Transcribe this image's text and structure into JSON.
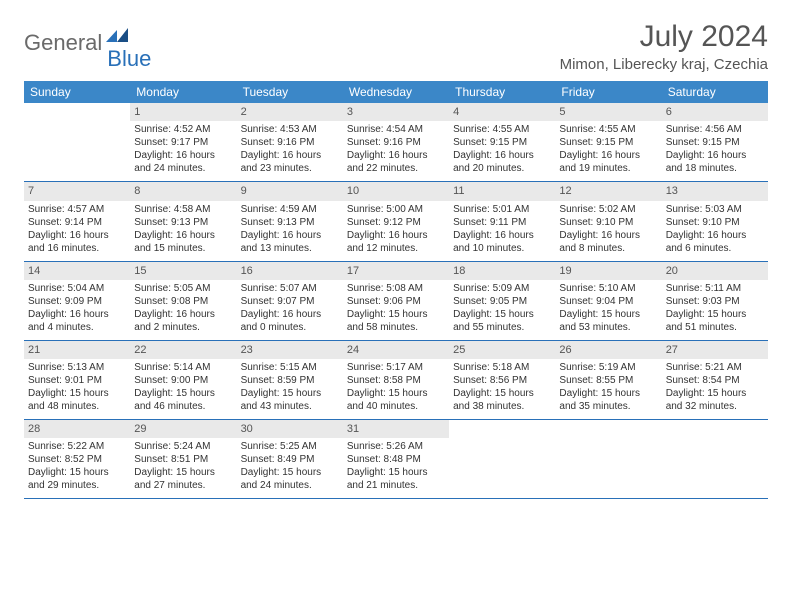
{
  "logo": {
    "text1": "General",
    "text2": "Blue"
  },
  "title": "July 2024",
  "location": "Mimon, Liberecky kraj, Czechia",
  "colors": {
    "header_bg": "#3b87c8",
    "header_text": "#ffffff",
    "day_bar_bg": "#e9e9e9",
    "border": "#2970b8",
    "title_color": "#555555",
    "logo_gray": "#6a6a6a",
    "logo_blue": "#2970b8"
  },
  "day_headers": [
    "Sunday",
    "Monday",
    "Tuesday",
    "Wednesday",
    "Thursday",
    "Friday",
    "Saturday"
  ],
  "weeks": [
    [
      {
        "empty": true
      },
      {
        "n": "1",
        "sr": "4:52 AM",
        "ss": "9:17 PM",
        "dl": "16 hours and 24 minutes."
      },
      {
        "n": "2",
        "sr": "4:53 AM",
        "ss": "9:16 PM",
        "dl": "16 hours and 23 minutes."
      },
      {
        "n": "3",
        "sr": "4:54 AM",
        "ss": "9:16 PM",
        "dl": "16 hours and 22 minutes."
      },
      {
        "n": "4",
        "sr": "4:55 AM",
        "ss": "9:15 PM",
        "dl": "16 hours and 20 minutes."
      },
      {
        "n": "5",
        "sr": "4:55 AM",
        "ss": "9:15 PM",
        "dl": "16 hours and 19 minutes."
      },
      {
        "n": "6",
        "sr": "4:56 AM",
        "ss": "9:15 PM",
        "dl": "16 hours and 18 minutes."
      }
    ],
    [
      {
        "n": "7",
        "sr": "4:57 AM",
        "ss": "9:14 PM",
        "dl": "16 hours and 16 minutes."
      },
      {
        "n": "8",
        "sr": "4:58 AM",
        "ss": "9:13 PM",
        "dl": "16 hours and 15 minutes."
      },
      {
        "n": "9",
        "sr": "4:59 AM",
        "ss": "9:13 PM",
        "dl": "16 hours and 13 minutes."
      },
      {
        "n": "10",
        "sr": "5:00 AM",
        "ss": "9:12 PM",
        "dl": "16 hours and 12 minutes."
      },
      {
        "n": "11",
        "sr": "5:01 AM",
        "ss": "9:11 PM",
        "dl": "16 hours and 10 minutes."
      },
      {
        "n": "12",
        "sr": "5:02 AM",
        "ss": "9:10 PM",
        "dl": "16 hours and 8 minutes."
      },
      {
        "n": "13",
        "sr": "5:03 AM",
        "ss": "9:10 PM",
        "dl": "16 hours and 6 minutes."
      }
    ],
    [
      {
        "n": "14",
        "sr": "5:04 AM",
        "ss": "9:09 PM",
        "dl": "16 hours and 4 minutes."
      },
      {
        "n": "15",
        "sr": "5:05 AM",
        "ss": "9:08 PM",
        "dl": "16 hours and 2 minutes."
      },
      {
        "n": "16",
        "sr": "5:07 AM",
        "ss": "9:07 PM",
        "dl": "16 hours and 0 minutes."
      },
      {
        "n": "17",
        "sr": "5:08 AM",
        "ss": "9:06 PM",
        "dl": "15 hours and 58 minutes."
      },
      {
        "n": "18",
        "sr": "5:09 AM",
        "ss": "9:05 PM",
        "dl": "15 hours and 55 minutes."
      },
      {
        "n": "19",
        "sr": "5:10 AM",
        "ss": "9:04 PM",
        "dl": "15 hours and 53 minutes."
      },
      {
        "n": "20",
        "sr": "5:11 AM",
        "ss": "9:03 PM",
        "dl": "15 hours and 51 minutes."
      }
    ],
    [
      {
        "n": "21",
        "sr": "5:13 AM",
        "ss": "9:01 PM",
        "dl": "15 hours and 48 minutes."
      },
      {
        "n": "22",
        "sr": "5:14 AM",
        "ss": "9:00 PM",
        "dl": "15 hours and 46 minutes."
      },
      {
        "n": "23",
        "sr": "5:15 AM",
        "ss": "8:59 PM",
        "dl": "15 hours and 43 minutes."
      },
      {
        "n": "24",
        "sr": "5:17 AM",
        "ss": "8:58 PM",
        "dl": "15 hours and 40 minutes."
      },
      {
        "n": "25",
        "sr": "5:18 AM",
        "ss": "8:56 PM",
        "dl": "15 hours and 38 minutes."
      },
      {
        "n": "26",
        "sr": "5:19 AM",
        "ss": "8:55 PM",
        "dl": "15 hours and 35 minutes."
      },
      {
        "n": "27",
        "sr": "5:21 AM",
        "ss": "8:54 PM",
        "dl": "15 hours and 32 minutes."
      }
    ],
    [
      {
        "n": "28",
        "sr": "5:22 AM",
        "ss": "8:52 PM",
        "dl": "15 hours and 29 minutes."
      },
      {
        "n": "29",
        "sr": "5:24 AM",
        "ss": "8:51 PM",
        "dl": "15 hours and 27 minutes."
      },
      {
        "n": "30",
        "sr": "5:25 AM",
        "ss": "8:49 PM",
        "dl": "15 hours and 24 minutes."
      },
      {
        "n": "31",
        "sr": "5:26 AM",
        "ss": "8:48 PM",
        "dl": "15 hours and 21 minutes."
      },
      {
        "empty": true
      },
      {
        "empty": true
      },
      {
        "empty": true
      }
    ]
  ],
  "labels": {
    "sunrise": "Sunrise:",
    "sunset": "Sunset:",
    "daylight": "Daylight:"
  }
}
